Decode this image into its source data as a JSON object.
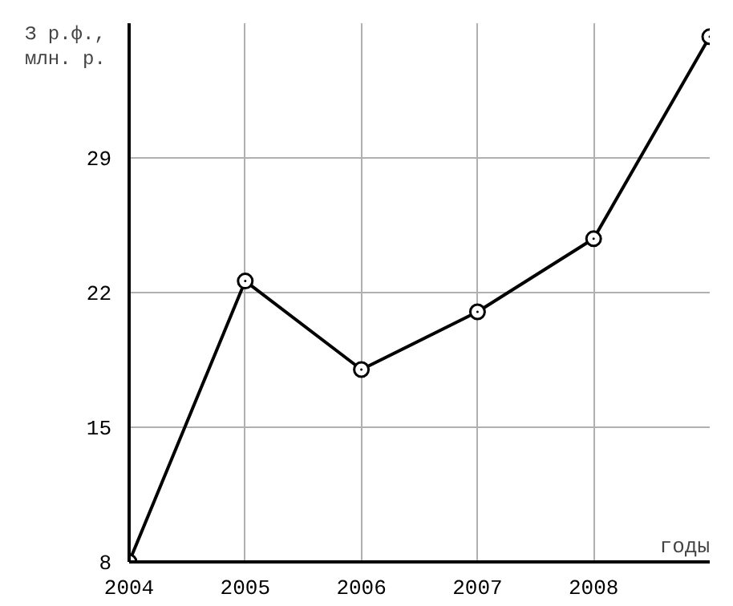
{
  "chart_data": {
    "type": "line",
    "ylabel": "З р.ф.,\nмлн. р.",
    "xlabel": "годы",
    "x": [
      2004,
      2005,
      2006,
      2007,
      2008,
      2009
    ],
    "series": [
      {
        "color": "#000000",
        "values": [
          8,
          22.6,
          18,
          21,
          24.8,
          35.3
        ]
      }
    ],
    "xlim": [
      2004,
      2009
    ],
    "xticks": [
      2004,
      2005,
      2006,
      2007,
      2008
    ],
    "ylim": [
      8,
      36
    ],
    "yticks": [
      8,
      15,
      22,
      29
    ],
    "grid": true,
    "marker": "circle",
    "line_style": "solid"
  }
}
